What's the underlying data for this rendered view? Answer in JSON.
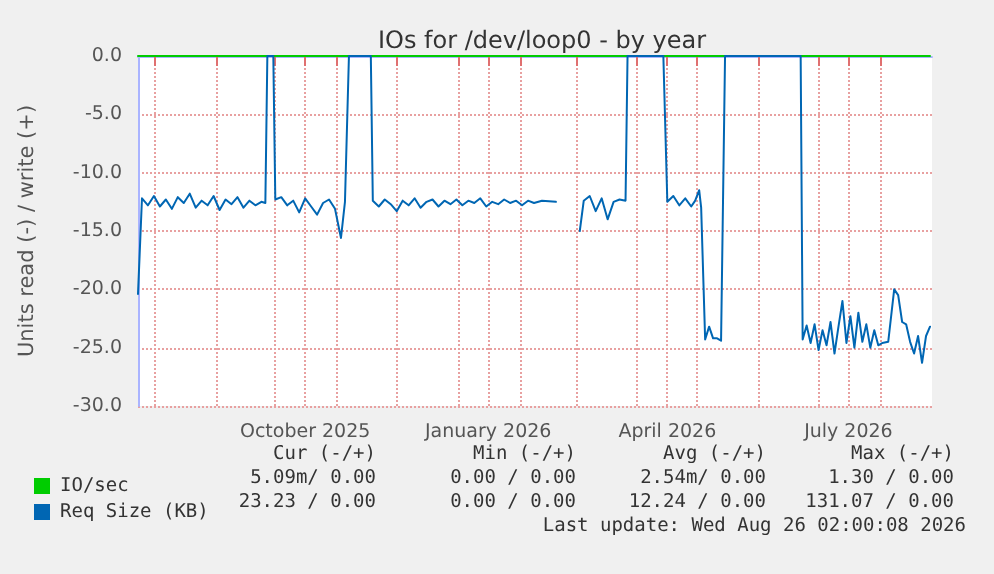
{
  "chart_data": {
    "type": "line",
    "title": "IOs for /dev/loop0 - by year",
    "ylabel": "Units read (-) / write (+)",
    "xlim": [
      "2025-07-24",
      "2026-08-27"
    ],
    "xticks": [
      {
        "value": "2025-08-01",
        "label": null
      },
      {
        "value": "2025-09-01",
        "label": null
      },
      {
        "value": "2025-10-01",
        "label": null
      },
      {
        "value": "2025-10-16",
        "label": "October 2025"
      },
      {
        "value": "2025-11-01",
        "label": null
      },
      {
        "value": "2025-12-01",
        "label": null
      },
      {
        "value": "2026-01-01",
        "label": null
      },
      {
        "value": "2026-01-16",
        "label": "January 2026"
      },
      {
        "value": "2026-02-01",
        "label": null
      },
      {
        "value": "2026-03-01",
        "label": null
      },
      {
        "value": "2026-04-01",
        "label": null
      },
      {
        "value": "2026-04-16",
        "label": "April 2026"
      },
      {
        "value": "2026-05-01",
        "label": null
      },
      {
        "value": "2026-06-01",
        "label": null
      },
      {
        "value": "2026-07-01",
        "label": null
      },
      {
        "value": "2026-07-16",
        "label": "July 2026"
      },
      {
        "value": "2026-08-01",
        "label": null
      }
    ],
    "ylim": [
      -30,
      0
    ],
    "yticks": [
      {
        "value": -30,
        "label": "-30.0"
      },
      {
        "value": -25,
        "label": "-25.0"
      },
      {
        "value": -20,
        "label": "-20.0"
      },
      {
        "value": -15,
        "label": "-15.0"
      },
      {
        "value": -10,
        "label": "-10.0"
      },
      {
        "value": -5,
        "label": "-5.0"
      },
      {
        "value": 0,
        "label": "0.0"
      }
    ],
    "grid": true,
    "legend": "bottom left",
    "marker": "none",
    "line_style": "solid",
    "series": [
      {
        "name": "IO/sec",
        "color": "#00cc00",
        "x": [
          "2025-07-24",
          "2026-08-26"
        ],
        "values": [
          0,
          0
        ]
      },
      {
        "name": "Req Size (KB)",
        "color": "#0066b3",
        "x": [
          "2025-07-24",
          "2025-07-26",
          "2025-07-29",
          "2025-08-01",
          "2025-08-04",
          "2025-08-07",
          "2025-08-10",
          "2025-08-13",
          "2025-08-16",
          "2025-08-19",
          "2025-08-22",
          "2025-08-25",
          "2025-08-28",
          "2025-08-31",
          "2025-09-03",
          "2025-09-06",
          "2025-09-09",
          "2025-09-12",
          "2025-09-15",
          "2025-09-18",
          "2025-09-21",
          "2025-09-24",
          "2025-09-26",
          "2025-09-27",
          "2025-09-30",
          "2025-10-01",
          "2025-10-04",
          "2025-10-07",
          "2025-10-10",
          "2025-10-13",
          "2025-10-16",
          "2025-10-19",
          "2025-10-22",
          "2025-10-25",
          "2025-10-28",
          "2025-10-31",
          "2025-11-03",
          "2025-11-05",
          "2025-11-07",
          "2025-11-18",
          "2025-11-19",
          "2025-11-22",
          "2025-11-25",
          "2025-11-28",
          "2025-12-01",
          "2025-12-04",
          "2025-12-07",
          "2025-12-10",
          "2025-12-13",
          "2025-12-16",
          "2025-12-19",
          "2025-12-22",
          "2025-12-25",
          "2025-12-28",
          "2025-12-31",
          "2026-01-03",
          "2026-01-06",
          "2026-01-09",
          "2026-01-12",
          "2026-01-15",
          "2026-01-18",
          "2026-01-21",
          "2026-01-24",
          "2026-01-27",
          "2026-01-30",
          "2026-02-02",
          "2026-02-05",
          "2026-02-08",
          "2026-02-12",
          "2026-02-19",
          "2026-02-20",
          "2026-03-02",
          "2026-03-03",
          "2026-03-05",
          "2026-03-08",
          "2026-03-11",
          "2026-03-14",
          "2026-03-17",
          "2026-03-20",
          "2026-03-23",
          "2026-03-26",
          "2026-03-27",
          "2026-04-14",
          "2026-04-16",
          "2026-04-19",
          "2026-04-22",
          "2026-04-25",
          "2026-04-28",
          "2026-04-30",
          "2026-05-02",
          "2026-05-03",
          "2026-05-05",
          "2026-05-07",
          "2026-05-09",
          "2026-05-11",
          "2026-05-13",
          "2026-05-15",
          "2026-06-22",
          "2026-06-23",
          "2026-06-25",
          "2026-06-27",
          "2026-06-29",
          "2026-07-01",
          "2026-07-03",
          "2026-07-05",
          "2026-07-07",
          "2026-07-09",
          "2026-07-11",
          "2026-07-13",
          "2026-07-15",
          "2026-07-17",
          "2026-07-19",
          "2026-07-21",
          "2026-07-23",
          "2026-07-25",
          "2026-07-27",
          "2026-07-29",
          "2026-07-31",
          "2026-08-02",
          "2026-08-05",
          "2026-08-08",
          "2026-08-10",
          "2026-08-12",
          "2026-08-14",
          "2026-08-16",
          "2026-08-18",
          "2026-08-20",
          "2026-08-22",
          "2026-08-24",
          "2026-08-26"
        ],
        "values": [
          -20.4,
          -12.2,
          -12.8,
          -12.0,
          -12.9,
          -12.3,
          -13.1,
          -12.1,
          -12.6,
          -11.8,
          -13.0,
          -12.4,
          -12.8,
          -12.0,
          -13.2,
          -12.3,
          -12.7,
          -12.1,
          -13.0,
          -12.4,
          -12.8,
          -12.5,
          -12.6,
          0,
          0,
          -12.3,
          -12.1,
          -12.8,
          -12.4,
          -13.4,
          -12.2,
          -12.9,
          -13.6,
          -12.6,
          -12.3,
          -13.1,
          -15.6,
          -12.5,
          0,
          0,
          -12.4,
          -12.9,
          -12.3,
          -12.7,
          -13.3,
          -12.4,
          -12.8,
          -12.2,
          -13.0,
          -12.5,
          -12.3,
          -12.9,
          -12.4,
          -12.7,
          -12.3,
          -12.8,
          -12.4,
          -12.6,
          -12.2,
          -12.9,
          -12.5,
          -12.7,
          -12.3,
          -12.6,
          -12.4,
          -12.8,
          -12.4,
          -12.6,
          -12.4,
          -12.5,
          null,
          null,
          -15.0,
          -12.4,
          -12.0,
          -13.3,
          -12.2,
          -14.0,
          -12.5,
          -12.3,
          -12.4,
          0,
          0,
          -12.5,
          -12.0,
          -12.8,
          -12.2,
          -12.9,
          -12.4,
          -11.5,
          -13.0,
          -24.3,
          -23.2,
          -24.2,
          -24.2,
          -24.4,
          0,
          0,
          -24.3,
          -23.1,
          -24.6,
          -23.0,
          -25.2,
          -23.5,
          -24.8,
          -22.8,
          -25.5,
          -23.2,
          -21.0,
          -24.6,
          -22.3,
          -25.0,
          -22.0,
          -24.5,
          -23.0,
          -25.0,
          -23.5,
          -24.8,
          -24.6,
          -24.5,
          -20.0,
          -20.5,
          -22.8,
          -23.0,
          -24.5,
          -25.5,
          -24.0,
          -26.3,
          -24.0,
          -23.2
        ]
      }
    ],
    "annotations": [
      "Cur (-/+)",
      "Min (-/+)",
      "Avg (-/+)",
      "Max (-/+)",
      "5.09m/ 0.00",
      "0.00 / 0.00",
      "2.54m/ 0.00",
      "1.30 / 0.00",
      "23.23 / 0.00",
      "0.00 / 0.00",
      "12.24 / 0.00",
      "131.07 / 0.00",
      "Last update: Wed Aug 26 02:00:08 2026"
    ]
  }
}
